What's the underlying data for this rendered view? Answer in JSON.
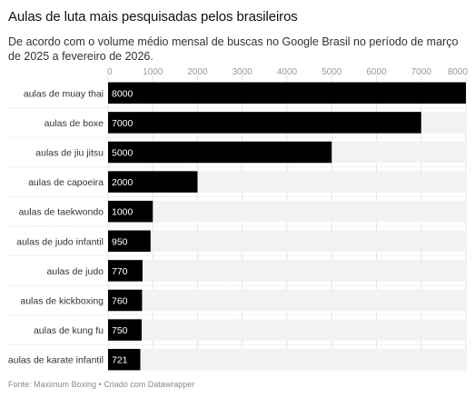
{
  "chart_data": {
    "type": "bar",
    "orientation": "horizontal",
    "title": "Aulas de luta mais pesquisadas pelos brasileiros",
    "subtitle": "De acordo com o volume médio mensal de buscas no Google Brasil no período de março de 2025 a fevereiro de 2026.",
    "footer": "Fonte: Maximum Boxing • Criado com Datawrapper",
    "categories": [
      "aulas de muay thai",
      "aulas de boxe",
      "aulas de jiu jitsu",
      "aulas de capoeira",
      "aulas de taekwondo",
      "aulas de judo infantil",
      "aulas de judo",
      "aulas de kickboxing",
      "aulas de kung fu",
      "aulas de karate infantil"
    ],
    "values": [
      8000,
      7000,
      5000,
      2000,
      1000,
      950,
      770,
      760,
      750,
      721
    ],
    "x_ticks": [
      "0",
      "1000",
      "2000",
      "3000",
      "4000",
      "5000",
      "6000",
      "7000",
      "8000"
    ],
    "xlim": [
      0,
      8000
    ],
    "grid": true,
    "bar_color": "#000000",
    "track_color": "#f2f2f2"
  }
}
